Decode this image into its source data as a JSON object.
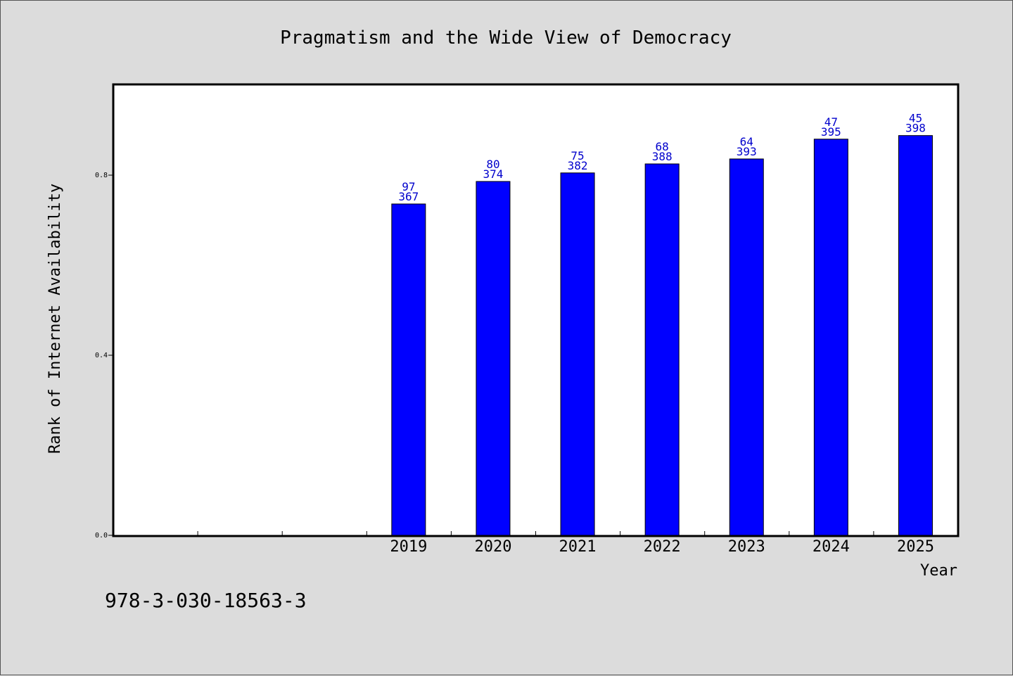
{
  "chart_data": {
    "type": "bar",
    "title": "Pragmatism and the Wide View of Democracy",
    "xlabel": "Year",
    "ylabel": "Rank of Internet Availability",
    "ylim": [
      0,
      1.0
    ],
    "yticks": [
      "0.0",
      "0.4",
      "0.8"
    ],
    "ytick_values": [
      0.0,
      0.4,
      0.8
    ],
    "slots": 10,
    "categories": [
      "2019",
      "2020",
      "2021",
      "2022",
      "2023",
      "2024",
      "2025"
    ],
    "category_slot_start": 3,
    "values": [
      0.736,
      0.786,
      0.805,
      0.825,
      0.836,
      0.88,
      0.888
    ],
    "labels_top": [
      "97",
      "80",
      "75",
      "68",
      "64",
      "47",
      "45"
    ],
    "labels_bottom": [
      "367",
      "374",
      "382",
      "388",
      "393",
      "395",
      "398"
    ],
    "bar_color": "#0000ff",
    "label_color": "#0000cc",
    "grid": false
  },
  "footer": {
    "isbn": "978-3-030-18563-3"
  }
}
